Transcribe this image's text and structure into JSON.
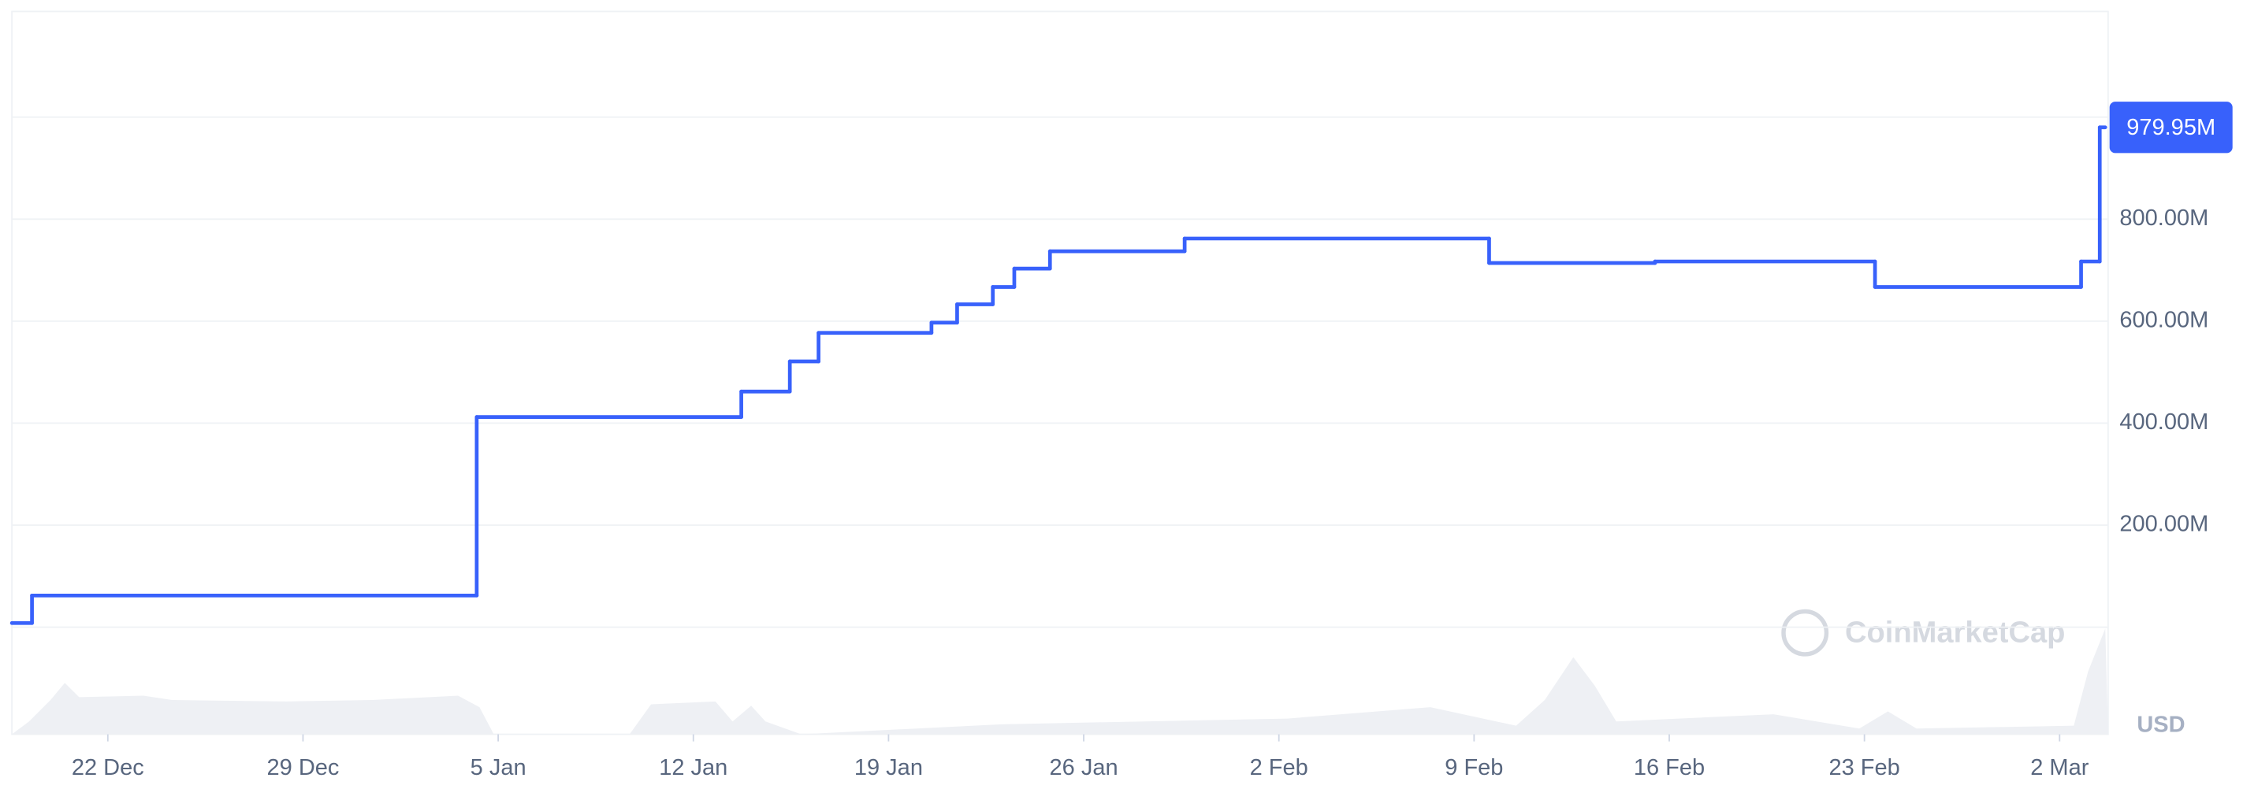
{
  "chart_data": {
    "type": "line",
    "step": true,
    "color": "#3861fb",
    "xlim": [
      -3.44,
      71.74
    ],
    "ylim": [
      0,
      1000
    ],
    "xticks": [
      {
        "value": 0,
        "label": "22 Dec"
      },
      {
        "value": 7,
        "label": "29 Dec"
      },
      {
        "value": 14,
        "label": "5 Jan"
      },
      {
        "value": 21,
        "label": "12 Jan"
      },
      {
        "value": 28,
        "label": "19 Jan"
      },
      {
        "value": 35,
        "label": "26 Jan"
      },
      {
        "value": 42,
        "label": "2 Feb"
      },
      {
        "value": 49,
        "label": "9 Feb"
      },
      {
        "value": 56,
        "label": "16 Feb"
      },
      {
        "value": 63,
        "label": "23 Feb"
      },
      {
        "value": 70,
        "label": "2 Mar"
      }
    ],
    "yticks": [
      {
        "value": 200,
        "label": "200.00M"
      },
      {
        "value": 400,
        "label": "400.00M"
      },
      {
        "value": 600,
        "label": "600.00M"
      },
      {
        "value": 800,
        "label": "800.00M"
      }
    ],
    "grid": true,
    "x": [
      -3.44,
      -2.72,
      13.23,
      22.72,
      24.46,
      25.49,
      29.54,
      30.46,
      31.74,
      32.51,
      33.79,
      38.62,
      49.54,
      55.49,
      63.38,
      70.77,
      71.44
    ],
    "values": [
      8,
      62,
      412,
      462,
      521,
      577,
      597,
      633,
      667,
      703,
      737,
      762,
      714,
      717,
      667,
      717,
      979.95
    ],
    "value_labels": [
      null,
      null,
      null,
      null,
      null,
      null,
      null,
      null,
      null,
      null,
      null,
      null,
      null,
      null,
      null,
      null,
      "979.95M"
    ],
    "currency": "USD",
    "watermark": "CoinMarketCap"
  }
}
